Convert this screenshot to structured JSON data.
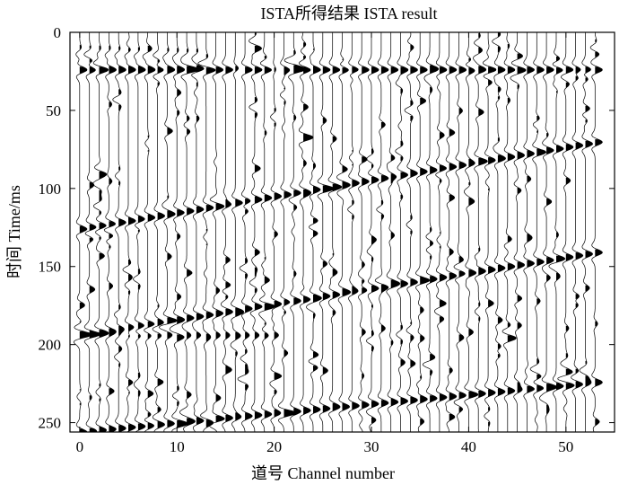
{
  "chart_data": {
    "type": "seismic-wiggle",
    "title": "ISTA所得结果 ISTA result",
    "xlabel": "道号 Channel number",
    "ylabel": "时间 Time/ms",
    "xlim": [
      -1,
      55
    ],
    "ylim": [
      256,
      0
    ],
    "x_ticks": [
      0,
      10,
      20,
      30,
      40,
      50
    ],
    "y_ticks": [
      0,
      50,
      100,
      150,
      200,
      250
    ],
    "channels": 54,
    "colors": {
      "trace": "#000000",
      "fill": "#000000",
      "axes": "#000000",
      "background": "#ffffff"
    },
    "events": [
      {
        "name": "",
        "type": "linear",
        "t0": 24,
        "slope": 0.0,
        "polarity": 1,
        "strength": 1.0
      },
      {
        "name": "",
        "type": "linear",
        "t0": 126,
        "slope": -1.05,
        "polarity": 1,
        "strength": 1.0
      },
      {
        "name": "",
        "type": "linear",
        "t0": 194,
        "slope": 0.0,
        "polarity": 1,
        "strength": 0.6,
        "channel_range": [
          0,
          20
        ]
      },
      {
        "name": "",
        "type": "linear",
        "t0": 194,
        "slope": -1.0,
        "polarity": 1,
        "strength": 1.0
      },
      {
        "name": "",
        "type": "linear",
        "t0": 256,
        "slope": -0.6,
        "polarity": 1,
        "strength": 1.0
      },
      {
        "name": "",
        "type": "linear",
        "t0": 14,
        "slope": 0.2,
        "polarity": -1,
        "strength": 0.5,
        "channel_range": [
          0,
          12
        ]
      }
    ]
  }
}
